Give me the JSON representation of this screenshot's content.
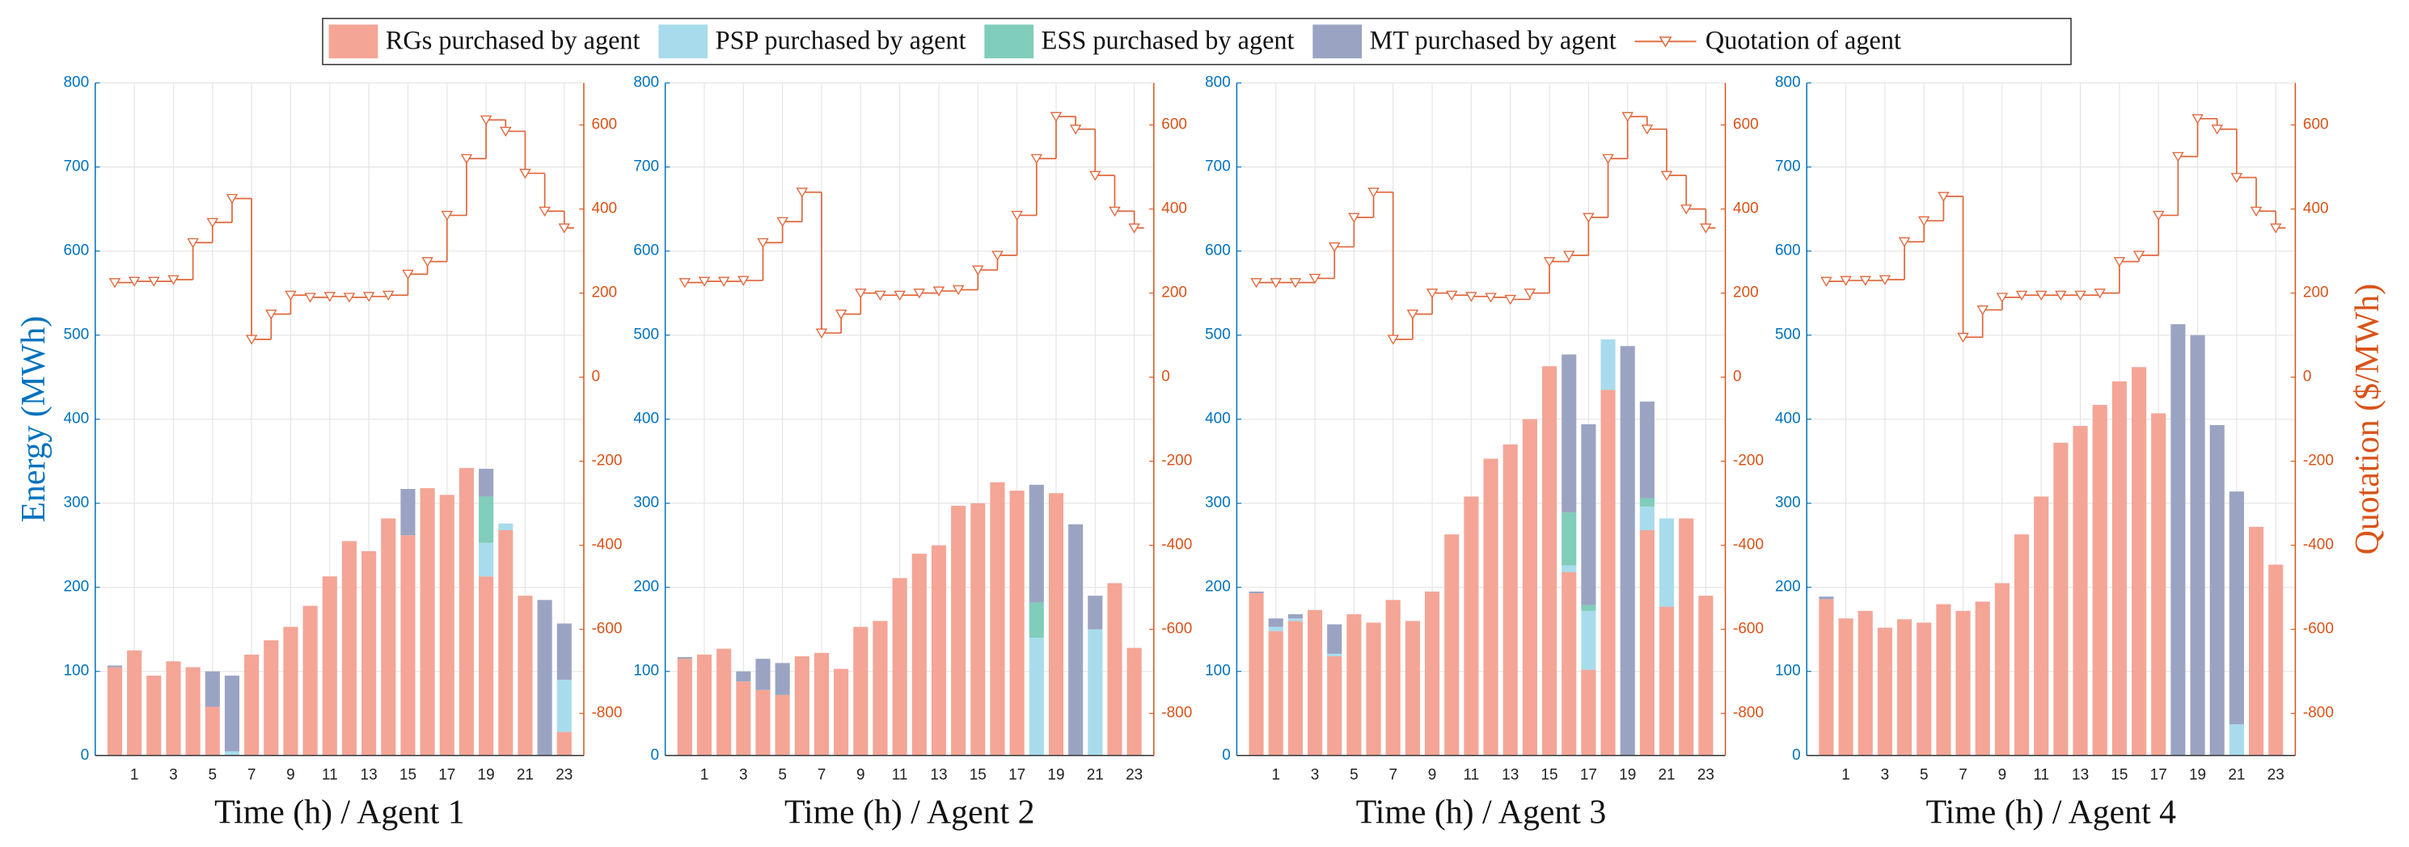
{
  "legend": [
    {
      "name": "RGs purchased by agent",
      "color": "#f4a596"
    },
    {
      "name": "PSP purchased by agent",
      "color": "#a8dcec"
    },
    {
      "name": "ESS purchased by agent",
      "color": "#7fcdba"
    },
    {
      "name": "MT purchased by agent",
      "color": "#9aa4c2"
    },
    {
      "name": "Quotation of agent",
      "color": "#e0663a"
    }
  ],
  "chart_data": [
    {
      "type": "bar",
      "xlabel": "Time (h) / Agent 1",
      "ylabel": "Energy (MWh)",
      "x": [
        0,
        1,
        2,
        3,
        4,
        5,
        6,
        7,
        8,
        9,
        10,
        11,
        12,
        13,
        14,
        15,
        16,
        17,
        18,
        19,
        20,
        21,
        22,
        23
      ],
      "xlim": [
        -1,
        24
      ],
      "xticks": [
        1,
        3,
        5,
        7,
        9,
        11,
        13,
        15,
        17,
        19,
        21,
        23
      ],
      "ylim": [
        0,
        800
      ],
      "yticks": [
        0,
        100,
        200,
        300,
        400,
        500,
        600,
        700,
        800
      ],
      "y2lim": [
        -900,
        700
      ],
      "y2ticks": [
        -800,
        -600,
        -400,
        -200,
        0,
        200,
        400,
        600
      ],
      "grid": true,
      "series": [
        {
          "values": [
            105,
            125,
            95,
            112,
            105,
            58,
            0,
            120,
            137,
            153,
            178,
            213,
            255,
            243,
            282,
            262,
            318,
            310,
            342,
            213,
            268,
            190,
            0,
            28
          ]
        },
        {
          "values": [
            0,
            0,
            0,
            0,
            0,
            0,
            5,
            0,
            0,
            0,
            0,
            0,
            0,
            0,
            0,
            0,
            0,
            0,
            0,
            40,
            8,
            0,
            0,
            62
          ]
        },
        {
          "values": [
            0,
            0,
            0,
            0,
            0,
            0,
            0,
            0,
            0,
            0,
            0,
            0,
            0,
            0,
            0,
            0,
            0,
            0,
            0,
            55,
            0,
            0,
            0,
            0
          ]
        },
        {
          "values": [
            2,
            0,
            0,
            0,
            0,
            42,
            90,
            0,
            0,
            0,
            0,
            0,
            0,
            0,
            0,
            55,
            0,
            0,
            0,
            33,
            0,
            0,
            185,
            67
          ]
        },
        {
          "type": "line",
          "axis": "y2",
          "values": [
            225,
            228,
            228,
            232,
            320,
            368,
            425,
            90,
            150,
            195,
            190,
            192,
            190,
            192,
            195,
            245,
            275,
            385,
            520,
            612,
            585,
            485,
            395,
            355
          ]
        }
      ]
    },
    {
      "type": "bar",
      "xlabel": "Time (h) / Agent 2",
      "x": [
        0,
        1,
        2,
        3,
        4,
        5,
        6,
        7,
        8,
        9,
        10,
        11,
        12,
        13,
        14,
        15,
        16,
        17,
        18,
        19,
        20,
        21,
        22,
        23
      ],
      "xlim": [
        -1,
        24
      ],
      "xticks": [
        1,
        3,
        5,
        7,
        9,
        11,
        13,
        15,
        17,
        19,
        21,
        23
      ],
      "ylim": [
        0,
        800
      ],
      "yticks": [
        0,
        100,
        200,
        300,
        400,
        500,
        600,
        700,
        800
      ],
      "y2lim": [
        -900,
        700
      ],
      "y2ticks": [
        -800,
        -600,
        -400,
        -200,
        0,
        200,
        400,
        600
      ],
      "grid": true,
      "series": [
        {
          "values": [
            115,
            120,
            127,
            88,
            78,
            72,
            118,
            122,
            103,
            153,
            160,
            211,
            240,
            250,
            297,
            300,
            325,
            315,
            0,
            312,
            0,
            0,
            205,
            128
          ]
        },
        {
          "values": [
            0,
            0,
            0,
            0,
            0,
            0,
            0,
            0,
            0,
            0,
            0,
            0,
            0,
            0,
            0,
            0,
            0,
            0,
            140,
            0,
            0,
            150,
            0,
            0
          ]
        },
        {
          "values": [
            0,
            0,
            0,
            0,
            0,
            0,
            0,
            0,
            0,
            0,
            0,
            0,
            0,
            0,
            0,
            0,
            0,
            0,
            42,
            0,
            0,
            0,
            0,
            0
          ]
        },
        {
          "values": [
            2,
            0,
            0,
            12,
            37,
            38,
            0,
            0,
            0,
            0,
            0,
            0,
            0,
            0,
            0,
            0,
            0,
            0,
            140,
            0,
            275,
            40,
            0,
            0
          ]
        },
        {
          "type": "line",
          "axis": "y2",
          "values": [
            225,
            228,
            228,
            230,
            320,
            370,
            440,
            105,
            150,
            200,
            195,
            195,
            200,
            205,
            208,
            255,
            290,
            385,
            520,
            620,
            590,
            480,
            395,
            355
          ]
        }
      ]
    },
    {
      "type": "bar",
      "xlabel": "Time (h) / Agent 3",
      "x": [
        0,
        1,
        2,
        3,
        4,
        5,
        6,
        7,
        8,
        9,
        10,
        11,
        12,
        13,
        14,
        15,
        16,
        17,
        18,
        19,
        20,
        21,
        22,
        23
      ],
      "xlim": [
        -1,
        24
      ],
      "xticks": [
        1,
        3,
        5,
        7,
        9,
        11,
        13,
        15,
        17,
        19,
        21,
        23
      ],
      "ylim": [
        0,
        800
      ],
      "yticks": [
        0,
        100,
        200,
        300,
        400,
        500,
        600,
        700,
        800
      ],
      "y2lim": [
        -900,
        700
      ],
      "y2ticks": [
        -800,
        -600,
        -400,
        -200,
        0,
        200,
        400,
        600
      ],
      "grid": true,
      "series": [
        {
          "values": [
            193,
            148,
            160,
            173,
            118,
            168,
            158,
            185,
            160,
            195,
            263,
            308,
            353,
            370,
            400,
            463,
            218,
            102,
            435,
            0,
            268,
            177,
            282,
            190
          ]
        },
        {
          "values": [
            0,
            5,
            3,
            0,
            3,
            0,
            0,
            0,
            0,
            0,
            0,
            0,
            0,
            0,
            0,
            0,
            8,
            70,
            60,
            0,
            28,
            105,
            0,
            0
          ]
        },
        {
          "values": [
            0,
            0,
            0,
            0,
            0,
            0,
            0,
            0,
            0,
            0,
            0,
            0,
            0,
            0,
            0,
            0,
            63,
            7,
            0,
            0,
            10,
            0,
            0,
            0
          ]
        },
        {
          "values": [
            2,
            10,
            5,
            0,
            35,
            0,
            0,
            0,
            0,
            0,
            0,
            0,
            0,
            0,
            0,
            0,
            188,
            215,
            0,
            487,
            115,
            0,
            0,
            0
          ]
        },
        {
          "type": "line",
          "axis": "y2",
          "values": [
            225,
            225,
            225,
            235,
            310,
            380,
            440,
            90,
            150,
            200,
            195,
            192,
            190,
            185,
            200,
            275,
            290,
            380,
            520,
            620,
            590,
            480,
            400,
            355
          ]
        }
      ]
    },
    {
      "type": "bar",
      "xlabel": "Time (h) / Agent 4",
      "y2label": "Quotation ($/MWh)",
      "x": [
        0,
        1,
        2,
        3,
        4,
        5,
        6,
        7,
        8,
        9,
        10,
        11,
        12,
        13,
        14,
        15,
        16,
        17,
        18,
        19,
        20,
        21,
        22,
        23
      ],
      "xlim": [
        -1,
        24
      ],
      "xticks": [
        1,
        3,
        5,
        7,
        9,
        11,
        13,
        15,
        17,
        19,
        21,
        23
      ],
      "ylim": [
        0,
        800
      ],
      "yticks": [
        0,
        100,
        200,
        300,
        400,
        500,
        600,
        700,
        800
      ],
      "y2lim": [
        -900,
        700
      ],
      "y2ticks": [
        -800,
        -600,
        -400,
        -200,
        0,
        200,
        400,
        600
      ],
      "grid": true,
      "series": [
        {
          "values": [
            186,
            163,
            172,
            152,
            162,
            158,
            180,
            172,
            183,
            205,
            263,
            308,
            372,
            392,
            417,
            445,
            462,
            407,
            0,
            0,
            0,
            0,
            272,
            227
          ]
        },
        {
          "values": [
            0,
            0,
            0,
            0,
            0,
            0,
            0,
            0,
            0,
            0,
            0,
            0,
            0,
            0,
            0,
            0,
            0,
            0,
            0,
            0,
            0,
            37,
            0,
            0
          ]
        },
        {
          "values": [
            0,
            0,
            0,
            0,
            0,
            0,
            0,
            0,
            0,
            0,
            0,
            0,
            0,
            0,
            0,
            0,
            0,
            0,
            0,
            0,
            0,
            0,
            0,
            0
          ]
        },
        {
          "values": [
            3,
            0,
            0,
            0,
            0,
            0,
            0,
            0,
            0,
            0,
            0,
            0,
            0,
            0,
            0,
            0,
            0,
            0,
            513,
            500,
            393,
            277,
            0,
            0
          ]
        },
        {
          "type": "line",
          "axis": "y2",
          "values": [
            228,
            230,
            230,
            232,
            322,
            372,
            430,
            95,
            160,
            190,
            195,
            195,
            195,
            195,
            200,
            275,
            290,
            385,
            525,
            615,
            590,
            475,
            395,
            355
          ]
        }
      ]
    }
  ]
}
